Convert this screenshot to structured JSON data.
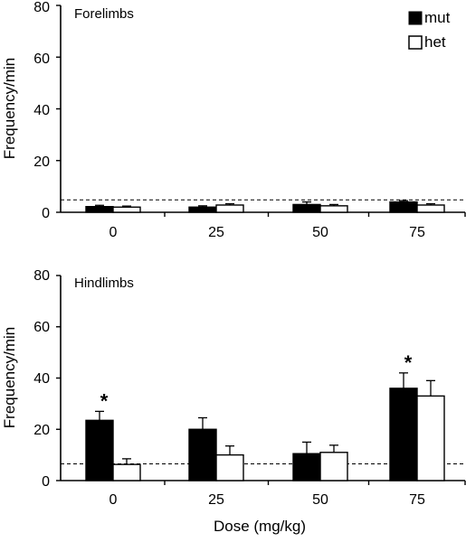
{
  "chart_data": [
    {
      "type": "bar",
      "title": "Forelimbs",
      "ylabel": "Frequency/min",
      "xlabel": "",
      "ylim": [
        0,
        80
      ],
      "yticks": [
        "0",
        "20",
        "40",
        "60",
        "80"
      ],
      "categories": [
        "0",
        "25",
        "50",
        "75"
      ],
      "series": [
        {
          "name": "mut",
          "color": "#000000",
          "values": [
            2.2,
            2.0,
            3.0,
            4.0
          ],
          "errors": [
            0.5,
            0.5,
            1.0,
            0.5
          ]
        },
        {
          "name": "het",
          "color": "#ffffff",
          "values": [
            2.0,
            2.8,
            2.5,
            2.8
          ],
          "errors": [
            0.4,
            0.5,
            0.5,
            0.5
          ]
        }
      ],
      "reference_line": 4.8,
      "significance": [],
      "legend": {
        "position": "top-right",
        "entries": [
          "mut",
          "het"
        ]
      }
    },
    {
      "type": "bar",
      "title": "Hindlimbs",
      "ylabel": "Frequency/min",
      "xlabel": "Dose (mg/kg)",
      "ylim": [
        0,
        80
      ],
      "yticks": [
        "0",
        "20",
        "40",
        "60",
        "80"
      ],
      "categories": [
        "0",
        "25",
        "50",
        "75"
      ],
      "series": [
        {
          "name": "mut",
          "color": "#000000",
          "values": [
            23.5,
            20.0,
            10.5,
            36.0
          ],
          "errors": [
            3.5,
            4.5,
            4.5,
            6.0
          ]
        },
        {
          "name": "het",
          "color": "#ffffff",
          "values": [
            6.3,
            10.0,
            11.0,
            33.0
          ],
          "errors": [
            2.2,
            3.5,
            2.8,
            6.0
          ]
        }
      ],
      "reference_line": 6.5,
      "significance": [
        {
          "category": "0",
          "label": "*"
        },
        {
          "category": "75",
          "label": "*"
        }
      ]
    }
  ]
}
